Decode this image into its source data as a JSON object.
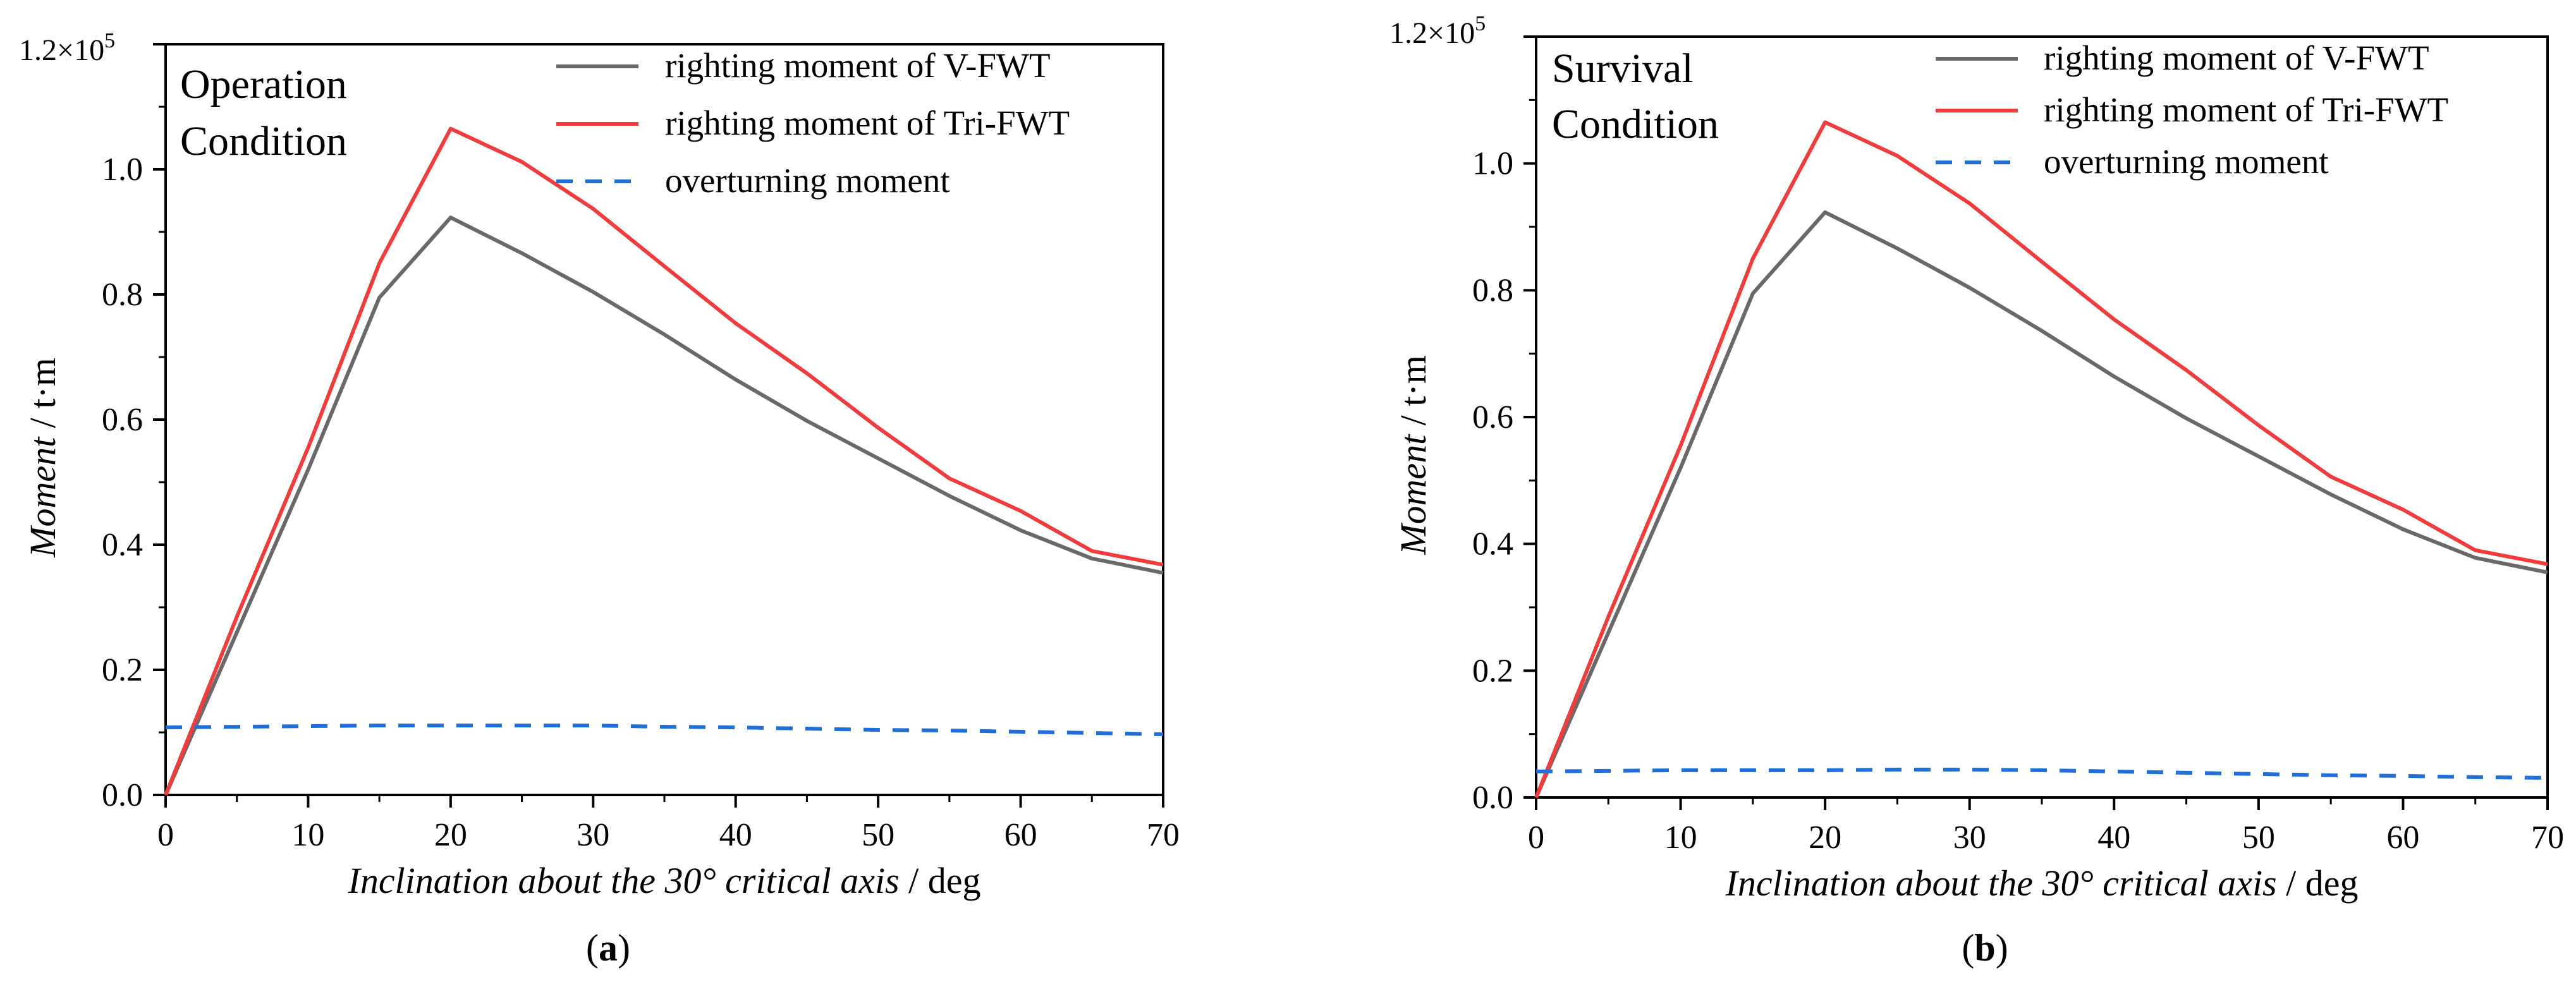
{
  "figure": {
    "panels": [
      {
        "open": "(",
        "letter": "a",
        "close": ")"
      },
      {
        "open": "(",
        "letter": "b",
        "close": ")"
      }
    ]
  },
  "chart_data": [
    {
      "type": "line",
      "panel": "a",
      "title": "",
      "annotation": [
        "Operation",
        "Condition"
      ],
      "xlabel": {
        "italic": "Inclination about the 30° critical axis",
        "suffix": " / deg"
      },
      "ylabel": {
        "italic": "Moment",
        "suffix": " / t·m"
      },
      "xlim": [
        0,
        70
      ],
      "ylim": [
        0,
        1.2
      ],
      "xticks": [
        0,
        10,
        20,
        30,
        40,
        50,
        60,
        70
      ],
      "yticks": [
        0.0,
        0.2,
        0.4,
        0.6,
        0.8,
        1.0
      ],
      "ytick_labels": [
        "0.0",
        "0.2",
        "0.4",
        "0.6",
        "0.8",
        "1.0"
      ],
      "top_label": {
        "mantissa": "1.2×10",
        "exponent": "5"
      },
      "legend_position": "top-right",
      "series": [
        {
          "name": "righting moment of V-FWT",
          "color": "#696969",
          "style": "solid",
          "x": [
            0,
            5,
            10,
            15,
            20,
            25,
            30,
            35,
            40,
            45,
            50,
            55,
            60,
            65,
            70
          ],
          "y": [
            0.0,
            0.26,
            0.52,
            0.795,
            0.923,
            0.866,
            0.804,
            0.736,
            0.664,
            0.598,
            0.538,
            0.478,
            0.423,
            0.378,
            0.355
          ]
        },
        {
          "name": "righting moment of Tri-FWT",
          "color": "#f03c3c",
          "style": "solid",
          "x": [
            0,
            5,
            10,
            15,
            20,
            25,
            30,
            35,
            40,
            45,
            50,
            55,
            60,
            65,
            70
          ],
          "y": [
            0.0,
            0.285,
            0.555,
            0.85,
            1.065,
            1.012,
            0.937,
            0.845,
            0.754,
            0.674,
            0.587,
            0.506,
            0.454,
            0.39,
            0.368
          ]
        },
        {
          "name": "overturning moment",
          "color": "#1f6fd8",
          "style": "dashed",
          "x": [
            0,
            5,
            10,
            15,
            20,
            25,
            30,
            35,
            40,
            45,
            50,
            55,
            60,
            65,
            70
          ],
          "y": [
            0.108,
            0.109,
            0.11,
            0.111,
            0.111,
            0.111,
            0.111,
            0.109,
            0.108,
            0.106,
            0.104,
            0.103,
            0.101,
            0.099,
            0.097
          ]
        }
      ]
    },
    {
      "type": "line",
      "panel": "b",
      "title": "",
      "annotation": [
        "Survival",
        "Condition"
      ],
      "xlabel": {
        "italic": "Inclination about the 30° critical axis",
        "suffix": " / deg"
      },
      "ylabel": {
        "italic": "Moment",
        "suffix": " / t·m"
      },
      "xlim": [
        0,
        70
      ],
      "ylim": [
        0,
        1.2
      ],
      "xticks": [
        0,
        10,
        20,
        30,
        40,
        50,
        60,
        70
      ],
      "yticks": [
        0.0,
        0.2,
        0.4,
        0.6,
        0.8,
        1.0
      ],
      "ytick_labels": [
        "0.0",
        "0.2",
        "0.4",
        "0.6",
        "0.8",
        "1.0"
      ],
      "top_label": {
        "mantissa": "1.2×10",
        "exponent": "5"
      },
      "legend_position": "top-right",
      "series": [
        {
          "name": "righting moment of V-FWT",
          "color": "#696969",
          "style": "solid",
          "x": [
            0,
            5,
            10,
            15,
            20,
            25,
            30,
            35,
            40,
            45,
            50,
            55,
            60,
            65,
            70
          ],
          "y": [
            0.0,
            0.26,
            0.52,
            0.795,
            0.923,
            0.866,
            0.804,
            0.736,
            0.664,
            0.598,
            0.538,
            0.478,
            0.423,
            0.378,
            0.355
          ]
        },
        {
          "name": "righting moment of Tri-FWT",
          "color": "#f03c3c",
          "style": "solid",
          "x": [
            0,
            5,
            10,
            15,
            20,
            25,
            30,
            35,
            40,
            45,
            50,
            55,
            60,
            65,
            70
          ],
          "y": [
            0.0,
            0.285,
            0.555,
            0.85,
            1.065,
            1.012,
            0.937,
            0.845,
            0.754,
            0.674,
            0.587,
            0.506,
            0.454,
            0.39,
            0.368
          ]
        },
        {
          "name": "overturning moment",
          "color": "#1f6fd8",
          "style": "dashed",
          "x": [
            0,
            5,
            10,
            15,
            20,
            25,
            30,
            35,
            40,
            45,
            50,
            55,
            60,
            65,
            70
          ],
          "y": [
            0.041,
            0.042,
            0.043,
            0.043,
            0.043,
            0.044,
            0.044,
            0.043,
            0.041,
            0.039,
            0.037,
            0.035,
            0.034,
            0.032,
            0.031
          ]
        }
      ]
    }
  ]
}
